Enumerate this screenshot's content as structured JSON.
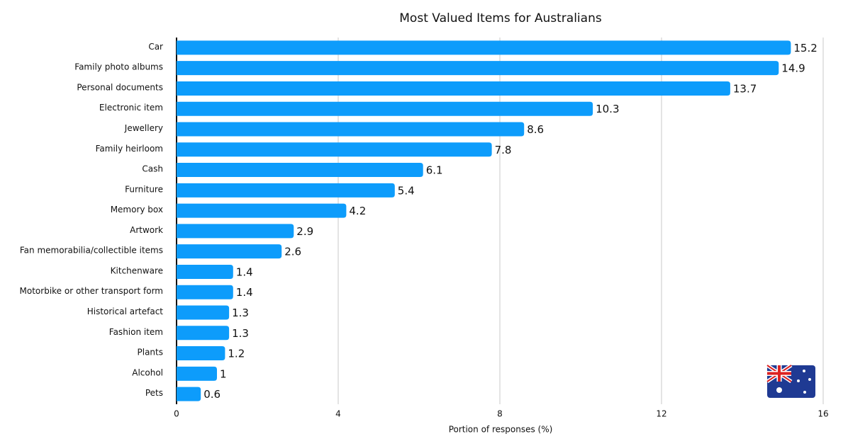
{
  "chart_data": {
    "type": "bar",
    "orientation": "horizontal",
    "title": "Most Valued Items for Australians",
    "x_label": "Portion of responses (%)",
    "categories": [
      "Car",
      "Family photo albums",
      "Personal documents",
      "Electronic item",
      "Jewellery",
      "Family heirloom",
      "Cash",
      "Furniture",
      "Memory box",
      "Artwork",
      "Fan memorabilia/collectible items",
      "Kitchenware",
      "Motorbike or other transport form",
      "Historical artefact",
      "Fashion item",
      "Plants",
      "Alcohol",
      "Pets"
    ],
    "values": [
      15.2,
      14.9,
      13.7,
      10.3,
      8.6,
      7.8,
      6.1,
      5.4,
      4.2,
      2.9,
      2.6,
      1.4,
      1.4,
      1.3,
      1.3,
      1.2,
      1,
      0.6
    ],
    "color": "#0d9cfb",
    "xlim": [
      0,
      16
    ],
    "xticks": [
      0,
      4,
      8,
      12,
      16
    ],
    "grid": true
  }
}
